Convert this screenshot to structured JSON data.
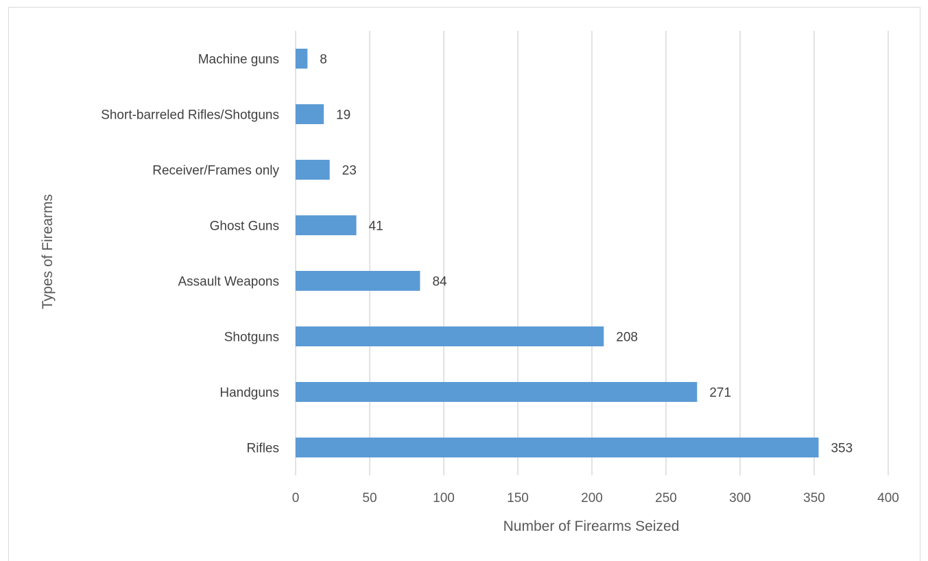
{
  "chart_data": {
    "type": "bar",
    "orientation": "horizontal",
    "categories": [
      "Machine guns",
      "Short-barreled Rifles/Shotguns",
      "Receiver/Frames only",
      "Ghost Guns",
      "Assault Weapons",
      "Shotguns",
      "Handguns",
      "Rifles"
    ],
    "values": [
      8,
      19,
      23,
      41,
      84,
      208,
      271,
      353
    ],
    "value_labels": [
      "8",
      "19",
      "23",
      "41",
      "84",
      "208",
      "271",
      "353"
    ],
    "title": "",
    "xlabel": "Number of Firearms Seized",
    "ylabel": "Types of Firearms",
    "xlim": [
      0,
      400
    ],
    "xticks": [
      0,
      50,
      100,
      150,
      200,
      250,
      300,
      350,
      400
    ],
    "xtick_labels": [
      "0",
      "50",
      "100",
      "150",
      "200",
      "250",
      "300",
      "350",
      "400"
    ],
    "grid": "vertical",
    "legend": "none",
    "bar_color": "#5b9bd5",
    "grid_color": "#d9d9d9"
  }
}
